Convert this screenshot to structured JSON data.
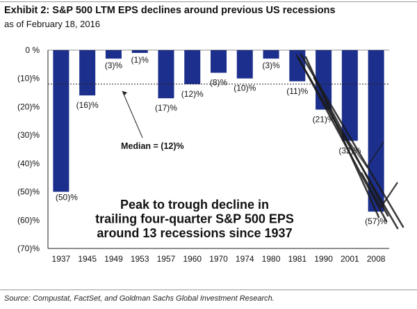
{
  "header": {
    "title": "Exhibit 2: S&P 500 LTM EPS declines around previous US recessions",
    "subtitle": "as of February 18, 2016"
  },
  "footer": {
    "source": "Source: Compustat, FactSet, and Goldman Sachs Global Investment Research."
  },
  "chart_data": {
    "type": "bar",
    "title": "Exhibit 2: S&P 500 LTM EPS declines around previous US recessions",
    "subtitle": "as of February 18, 2016",
    "xlabel": "",
    "ylabel": "",
    "categories": [
      "1937",
      "1945",
      "1949",
      "1953",
      "1957",
      "1960",
      "1970",
      "1974",
      "1980",
      "1981",
      "1990",
      "2001",
      "2008"
    ],
    "values": [
      -50,
      -16,
      -3,
      -1,
      -17,
      -12,
      -8,
      -10,
      -3,
      -11,
      -21,
      -32,
      -57
    ],
    "data_labels": [
      "(50)%",
      "(16)%",
      "(3)%",
      "(1)%",
      "(17)%",
      "(12)%",
      "(8)%",
      "(10)%",
      "(3)%",
      "(11)%",
      "(21)%",
      "(32)%",
      "(57)%"
    ],
    "ylim": [
      -70,
      0
    ],
    "yticks": [
      0,
      -10,
      -20,
      -30,
      -40,
      -50,
      -60,
      -70
    ],
    "ytick_labels": [
      "0 %",
      "(10)%",
      "(20)%",
      "(30)%",
      "(40)%",
      "(50)%",
      "(60)%",
      "(70)%"
    ],
    "median": {
      "value": -12,
      "label": "Median = (12)%"
    },
    "annotation": [
      "Peak to trough decline in",
      "trailing four-quarter S&P 500 EPS",
      "around 13 recessions since 1937"
    ],
    "bar_color": "#1c2f8c",
    "grid": false,
    "legend": "none"
  }
}
